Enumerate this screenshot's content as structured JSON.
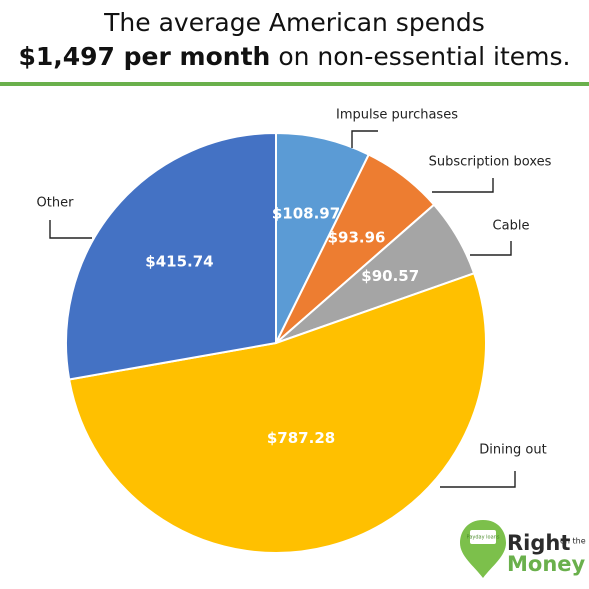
{
  "chart_data": {
    "type": "pie",
    "title": [
      "The average American spends",
      "$1,497 per month",
      "on non-essential items."
    ],
    "categories": [
      "Impulse purchases",
      "Subscription boxes",
      "Cable",
      "Dining out",
      "Other"
    ],
    "values": [
      108.97,
      93.96,
      90.57,
      787.28,
      415.74
    ],
    "value_labels": [
      "$108.97",
      "$93.96",
      "$90.57",
      "$787.28",
      "$415.74"
    ],
    "colors": [
      "#5b9bd5",
      "#ed7d31",
      "#a5a5a5",
      "#ffc000",
      "#4472c4"
    ]
  },
  "logo": {
    "text": [
      "Right",
      "on the",
      "Money"
    ],
    "badge": "Payday loans"
  }
}
